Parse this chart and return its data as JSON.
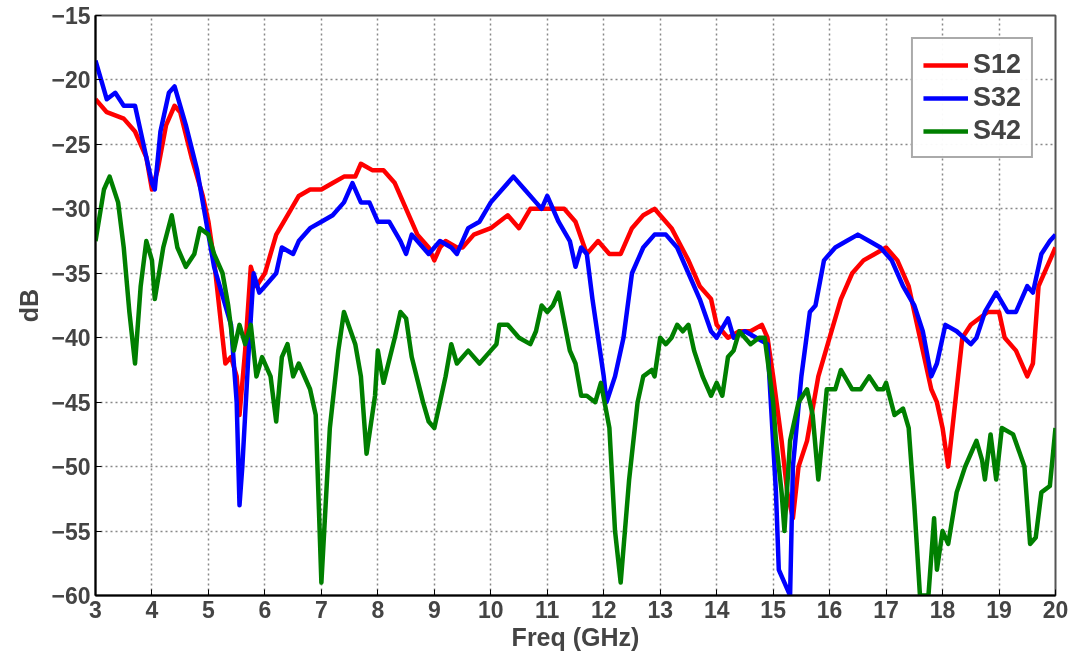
{
  "chart_data": {
    "type": "line",
    "xlabel": "Freq (GHz)",
    "ylabel": "dB",
    "xlim": [
      3,
      20
    ],
    "xticks": [
      3,
      4,
      5,
      6,
      7,
      8,
      9,
      10,
      11,
      12,
      13,
      14,
      15,
      16,
      17,
      18,
      19,
      20
    ],
    "ylim": [
      -60,
      -15
    ],
    "yticks": [
      -60,
      -55,
      -50,
      -45,
      -40,
      -35,
      -30,
      -25,
      -20,
      -15
    ],
    "grid": true,
    "legend": "top right",
    "line_style": "solid",
    "marker": "none",
    "series": [
      {
        "name": "S12",
        "color": "#ff0000",
        "x": [
          3.0,
          3.2,
          3.5,
          3.7,
          3.9,
          4.0,
          4.1,
          4.25,
          4.4,
          4.5,
          4.7,
          4.9,
          5.0,
          5.1,
          5.2,
          5.3,
          5.4,
          5.5,
          5.55,
          5.65,
          5.75,
          5.85,
          6.0,
          6.2,
          6.4,
          6.6,
          6.8,
          7.0,
          7.2,
          7.4,
          7.6,
          7.7,
          7.9,
          8.1,
          8.3,
          8.5,
          8.7,
          8.9,
          9.0,
          9.1,
          9.2,
          9.4,
          9.5,
          9.7,
          10.0,
          10.3,
          10.5,
          10.7,
          11.0,
          11.3,
          11.5,
          11.7,
          11.9,
          12.1,
          12.3,
          12.5,
          12.7,
          12.9,
          13.0,
          13.2,
          13.5,
          13.7,
          13.9,
          14.0,
          14.2,
          14.4,
          14.6,
          14.8,
          14.9,
          15.0,
          15.15,
          15.25,
          15.35,
          15.45,
          15.6,
          15.8,
          16.0,
          16.2,
          16.4,
          16.6,
          16.8,
          17.0,
          17.2,
          17.4,
          17.6,
          17.8,
          17.9,
          18.0,
          18.1,
          18.2,
          18.35,
          18.5,
          18.8,
          19.0,
          19.1,
          19.3,
          19.5,
          19.6,
          19.7,
          19.9,
          20.0
        ],
        "values": [
          -21.5,
          -22.5,
          -23,
          -24,
          -26,
          -28.5,
          -27,
          -23.5,
          -22,
          -22.5,
          -26,
          -29,
          -31,
          -34,
          -38,
          -42,
          -41.5,
          -43,
          -46,
          -41,
          -34.5,
          -36,
          -35,
          -32,
          -30.5,
          -29,
          -28.5,
          -28.5,
          -28,
          -27.5,
          -27.5,
          -26.5,
          -27,
          -27,
          -28,
          -30,
          -32,
          -33,
          -34,
          -33,
          -32.5,
          -33,
          -33,
          -32,
          -31.5,
          -30.5,
          -31.5,
          -30,
          -30,
          -30,
          -31,
          -33.5,
          -32.5,
          -33.5,
          -33.5,
          -31.5,
          -30.5,
          -30,
          -30.5,
          -31.5,
          -34,
          -36,
          -37,
          -39,
          -40,
          -39.5,
          -39.5,
          -39,
          -40,
          -43,
          -48,
          -52,
          -54,
          -50,
          -48,
          -43,
          -40,
          -37,
          -35,
          -34,
          -33.5,
          -33,
          -34,
          -36,
          -40,
          -44,
          -45,
          -47,
          -50,
          -46,
          -40,
          -39,
          -38,
          -38,
          -40,
          -41,
          -43,
          -42,
          -36,
          -34,
          -33
        ]
      },
      {
        "name": "S32",
        "color": "#0000ff",
        "x": [
          3.0,
          3.1,
          3.2,
          3.35,
          3.5,
          3.7,
          3.85,
          4.0,
          4.05,
          4.15,
          4.3,
          4.4,
          4.6,
          4.8,
          5.0,
          5.1,
          5.2,
          5.3,
          5.4,
          5.5,
          5.55,
          5.6,
          5.7,
          5.8,
          5.9,
          6.0,
          6.2,
          6.3,
          6.5,
          6.6,
          6.8,
          7.0,
          7.2,
          7.4,
          7.55,
          7.7,
          7.85,
          8.0,
          8.2,
          8.4,
          8.5,
          8.6,
          8.8,
          8.9,
          9.1,
          9.3,
          9.4,
          9.6,
          9.8,
          10.0,
          10.2,
          10.4,
          10.6,
          10.8,
          10.9,
          11.0,
          11.2,
          11.4,
          11.5,
          11.6,
          11.7,
          11.8,
          12.0,
          12.05,
          12.2,
          12.35,
          12.5,
          12.7,
          12.9,
          13.1,
          13.3,
          13.5,
          13.7,
          13.9,
          14.0,
          14.2,
          14.3,
          14.5,
          14.7,
          14.9,
          15.05,
          15.1,
          15.2,
          15.3,
          15.35,
          15.5,
          15.65,
          15.75,
          15.9,
          16.1,
          16.3,
          16.5,
          16.7,
          16.9,
          17.1,
          17.3,
          17.5,
          17.65,
          17.8,
          17.9,
          18.05,
          18.25,
          18.5,
          18.6,
          18.75,
          18.95,
          19.15,
          19.3,
          19.5,
          19.6,
          19.75,
          19.9,
          20.0
        ],
        "values": [
          -18.5,
          -20,
          -21.5,
          -21,
          -22,
          -22,
          -25,
          -28,
          -28.5,
          -24,
          -21,
          -20.5,
          -23.5,
          -27,
          -32,
          -34.5,
          -36,
          -37.5,
          -39,
          -45,
          -53,
          -50,
          -42,
          -35,
          -36.5,
          -36,
          -35,
          -33,
          -33.5,
          -32.5,
          -31.5,
          -31,
          -30.5,
          -29.5,
          -28,
          -29.5,
          -29.5,
          -31,
          -31,
          -32.5,
          -33.5,
          -32,
          -33,
          -33.5,
          -32.5,
          -33,
          -33.5,
          -31.5,
          -31,
          -29.5,
          -28.5,
          -27.5,
          -28.5,
          -29.5,
          -30,
          -29,
          -31,
          -32.5,
          -34.5,
          -33,
          -33.5,
          -37,
          -43,
          -45,
          -43,
          -40,
          -35,
          -33,
          -32,
          -32,
          -33,
          -35,
          -37,
          -39.5,
          -40,
          -38.5,
          -40,
          -39.5,
          -40,
          -40.5,
          -52,
          -58,
          -59,
          -60,
          -50,
          -43,
          -38,
          -37.5,
          -34,
          -33,
          -32.5,
          -32,
          -32.5,
          -33,
          -34,
          -36,
          -37.5,
          -39.5,
          -43,
          -42,
          -39,
          -39.5,
          -40.5,
          -40,
          -38,
          -36.5,
          -38,
          -38,
          -36,
          -36.5,
          -33.5,
          -32.5,
          -32
        ]
      },
      {
        "name": "S42",
        "color": "#007f00",
        "x": [
          3.0,
          3.15,
          3.25,
          3.4,
          3.5,
          3.6,
          3.7,
          3.8,
          3.9,
          4.0,
          4.05,
          4.2,
          4.35,
          4.45,
          4.6,
          4.75,
          4.85,
          5.0,
          5.1,
          5.25,
          5.35,
          5.45,
          5.55,
          5.65,
          5.75,
          5.85,
          5.95,
          6.1,
          6.2,
          6.3,
          6.4,
          6.5,
          6.6,
          6.8,
          6.9,
          7.0,
          7.15,
          7.3,
          7.4,
          7.6,
          7.7,
          7.8,
          7.95,
          8.0,
          8.1,
          8.3,
          8.4,
          8.5,
          8.6,
          8.8,
          8.9,
          9.0,
          9.1,
          9.2,
          9.3,
          9.4,
          9.6,
          9.8,
          10.0,
          10.1,
          10.15,
          10.3,
          10.5,
          10.7,
          10.8,
          10.9,
          11.0,
          11.1,
          11.2,
          11.4,
          11.5,
          11.6,
          11.7,
          11.85,
          11.95,
          12.1,
          12.2,
          12.3,
          12.45,
          12.6,
          12.7,
          12.85,
          12.9,
          13.0,
          13.1,
          13.2,
          13.3,
          13.4,
          13.5,
          13.6,
          13.75,
          13.85,
          13.9,
          14.0,
          14.1,
          14.2,
          14.3,
          14.4,
          14.5,
          14.6,
          14.75,
          14.85,
          15.0,
          15.05,
          15.15,
          15.2,
          15.3,
          15.45,
          15.6,
          15.7,
          15.8,
          15.95,
          16.1,
          16.2,
          16.4,
          16.55,
          16.7,
          16.85,
          16.95,
          17.0,
          17.15,
          17.3,
          17.4,
          17.5,
          17.6,
          17.75,
          17.85,
          17.9,
          18.0,
          18.1,
          18.25,
          18.4,
          18.5,
          18.6,
          18.7,
          18.75,
          18.85,
          18.95,
          19.05,
          19.25,
          19.45,
          19.55,
          19.65,
          19.75,
          19.9,
          20.0
        ],
        "values": [
          -32.5,
          -28.5,
          -27.5,
          -29.5,
          -33,
          -38,
          -42,
          -36,
          -32.5,
          -34,
          -37,
          -33,
          -30.5,
          -33,
          -34.5,
          -33.5,
          -31.5,
          -32,
          -33.5,
          -35,
          -37.5,
          -41,
          -39,
          -40.5,
          -39,
          -43,
          -41.5,
          -43,
          -46.5,
          -41.5,
          -40.5,
          -43,
          -42,
          -44,
          -46,
          -59,
          -47,
          -41,
          -38,
          -40.5,
          -43,
          -49,
          -44.5,
          -41,
          -43.5,
          -40,
          -38,
          -38.5,
          -41.5,
          -45,
          -46.5,
          -47,
          -45,
          -43,
          -40.5,
          -42,
          -41,
          -42,
          -41,
          -40.5,
          -39,
          -39,
          -40,
          -40.5,
          -39.5,
          -37.5,
          -38,
          -37.5,
          -36.5,
          -41,
          -42,
          -44.5,
          -44.5,
          -45,
          -43.5,
          -47,
          -55,
          -59,
          -51,
          -45,
          -43,
          -42.5,
          -43,
          -40,
          -40.5,
          -40,
          -39,
          -39.5,
          -39,
          -41,
          -43,
          -44,
          -44.5,
          -43.5,
          -44.5,
          -41.5,
          -41,
          -39.5,
          -40,
          -40.5,
          -40,
          -40,
          -45,
          -48,
          -52,
          -55,
          -48,
          -45,
          -44,
          -46,
          -51,
          -44,
          -44,
          -42.5,
          -44,
          -44,
          -43,
          -44,
          -44,
          -43.5,
          -46,
          -45.5,
          -47,
          -53,
          -60,
          -60,
          -54,
          -58,
          -55,
          -56,
          -52,
          -50,
          -49,
          -48,
          -49.5,
          -51,
          -47.5,
          -51,
          -47,
          -47.5,
          -50,
          -56,
          -55.5,
          -52,
          -51.5,
          -47
        ]
      }
    ]
  }
}
